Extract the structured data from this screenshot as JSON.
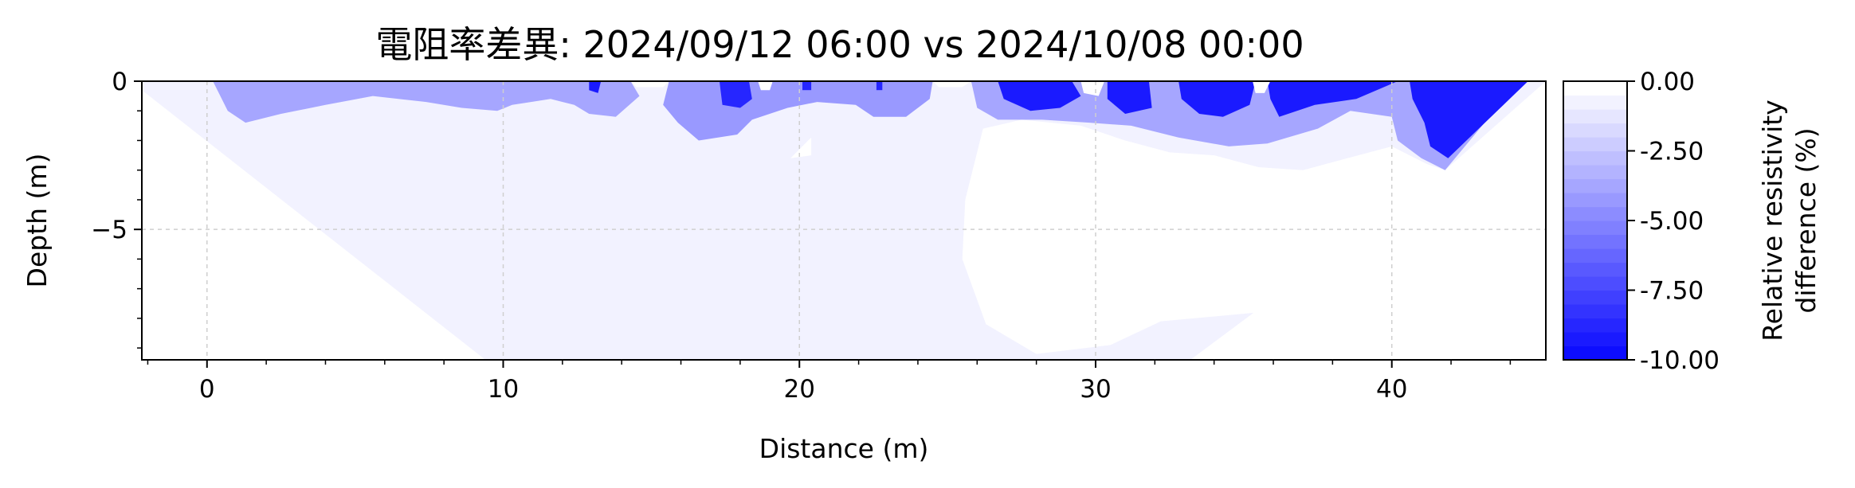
{
  "chart_data": {
    "type": "heatmap",
    "title": "電阻率差異: 2024/09/12 06:00 vs 2024/10/08 00:00",
    "xlabel": "Distance (m)",
    "ylabel": "Depth (m)",
    "xlim": [
      -2.2,
      45.2
    ],
    "ylim": [
      -9.4,
      0
    ],
    "x_ticks": [
      0,
      10,
      20,
      30,
      40
    ],
    "x_tick_labels": [
      "0",
      "10",
      "20",
      "30",
      "40"
    ],
    "y_ticks": [
      0,
      -5
    ],
    "y_tick_labels": [
      "0",
      "−5"
    ],
    "grid": true,
    "colorbar": {
      "label": "Relative resistivity difference (%)",
      "label_lines": [
        "Relative resistivity",
        "difference (%)"
      ],
      "range": [
        -10.0,
        0.0
      ],
      "ticks": [
        0.0,
        -2.5,
        -5.0,
        -7.5,
        -10.0
      ],
      "tick_labels": [
        "0.00",
        "-2.50",
        "-5.00",
        "-7.50",
        "-10.00"
      ],
      "levels": 20,
      "color_low": "#0000ff",
      "color_high": "#ffffff"
    },
    "regions": [
      {
        "name": "background",
        "value": -0.7,
        "points": [
          [
            -2.2,
            0
          ],
          [
            45.2,
            0
          ],
          [
            41.8,
            -3.0
          ],
          [
            33.2,
            -9.4
          ],
          [
            9.4,
            -9.4
          ],
          [
            -2.2,
            -0.3
          ]
        ]
      },
      {
        "name": "near-zero-center",
        "value": 0,
        "points": [
          [
            26.2,
            -1.6
          ],
          [
            27.5,
            -1.3
          ],
          [
            29.5,
            -1.5
          ],
          [
            31.0,
            -2.0
          ],
          [
            32.5,
            -2.4
          ],
          [
            34.0,
            -2.5
          ],
          [
            35.5,
            -2.9
          ],
          [
            37.0,
            -3.0
          ],
          [
            38.5,
            -2.6
          ],
          [
            40.0,
            -2.2
          ],
          [
            41.2,
            -2.8
          ],
          [
            41.8,
            -3.0
          ],
          [
            40.0,
            -5.5
          ],
          [
            35.5,
            -7.8
          ],
          [
            32.2,
            -8.1
          ],
          [
            30.5,
            -8.9
          ],
          [
            28.0,
            -9.2
          ],
          [
            26.3,
            -8.2
          ],
          [
            25.5,
            -6.0
          ],
          [
            25.6,
            -4.0
          ]
        ]
      },
      {
        "name": "near-zero-spot",
        "value": 0,
        "points": [
          [
            19.7,
            -2.6
          ],
          [
            20.4,
            -1.9
          ],
          [
            20.4,
            -2.5
          ]
        ]
      },
      {
        "name": "shallow-band",
        "value": -3.5,
        "points": [
          [
            0.2,
            0
          ],
          [
            14.3,
            0
          ],
          [
            14.6,
            -0.5
          ],
          [
            13.8,
            -1.2
          ],
          [
            12.9,
            -1.1
          ],
          [
            12.4,
            -0.8
          ],
          [
            11.6,
            -0.6
          ],
          [
            10.3,
            -0.8
          ],
          [
            9.8,
            -1.0
          ],
          [
            8.6,
            -0.9
          ],
          [
            7.4,
            -0.7
          ],
          [
            5.6,
            -0.5
          ],
          [
            4.0,
            -0.8
          ],
          [
            2.5,
            -1.1
          ],
          [
            1.3,
            -1.4
          ],
          [
            0.7,
            -1.0
          ]
        ]
      },
      {
        "name": "mid-band",
        "value": -4.0,
        "points": [
          [
            15.6,
            0
          ],
          [
            24.5,
            0
          ],
          [
            24.4,
            -0.6
          ],
          [
            23.6,
            -1.2
          ],
          [
            22.5,
            -1.2
          ],
          [
            21.9,
            -0.8
          ],
          [
            20.6,
            -0.7
          ],
          [
            19.6,
            -0.9
          ],
          [
            18.4,
            -1.3
          ],
          [
            17.9,
            -1.8
          ],
          [
            16.6,
            -2.0
          ],
          [
            15.9,
            -1.4
          ],
          [
            15.4,
            -0.8
          ]
        ]
      },
      {
        "name": "east-band",
        "value": -3.5,
        "points": [
          [
            25.8,
            0
          ],
          [
            44.3,
            0
          ],
          [
            41.8,
            -3.0
          ],
          [
            41.0,
            -2.6
          ],
          [
            40.2,
            -2.0
          ],
          [
            40.0,
            -1.2
          ],
          [
            38.6,
            -1.0
          ],
          [
            37.5,
            -1.6
          ],
          [
            35.8,
            -2.1
          ],
          [
            34.5,
            -2.2
          ],
          [
            32.8,
            -1.9
          ],
          [
            31.2,
            -1.5
          ],
          [
            29.8,
            -1.4
          ],
          [
            28.2,
            -1.3
          ],
          [
            26.7,
            -1.3
          ],
          [
            26.0,
            -0.9
          ]
        ]
      },
      {
        "name": "east-deep",
        "value": -9.0,
        "points": [
          [
            40.6,
            0
          ],
          [
            44.6,
            0
          ],
          [
            41.9,
            -2.6
          ],
          [
            41.3,
            -2.2
          ],
          [
            41.1,
            -1.4
          ],
          [
            40.7,
            -0.6
          ]
        ]
      },
      {
        "name": "block-27",
        "value": -9.0,
        "points": [
          [
            26.7,
            0
          ],
          [
            29.2,
            0
          ],
          [
            29.5,
            -0.5
          ],
          [
            28.8,
            -0.9
          ],
          [
            27.8,
            -1.0
          ],
          [
            26.9,
            -0.6
          ]
        ]
      },
      {
        "name": "block-31",
        "value": -9.0,
        "points": [
          [
            30.4,
            0
          ],
          [
            31.8,
            0
          ],
          [
            31.9,
            -0.9
          ],
          [
            31.0,
            -1.1
          ],
          [
            30.4,
            -0.6
          ]
        ]
      },
      {
        "name": "block-34",
        "value": -9.0,
        "points": [
          [
            32.8,
            0
          ],
          [
            35.4,
            0
          ],
          [
            35.2,
            -0.8
          ],
          [
            34.3,
            -1.2
          ],
          [
            33.5,
            -1.1
          ],
          [
            32.9,
            -0.6
          ]
        ]
      },
      {
        "name": "block-36",
        "value": -9.0,
        "points": [
          [
            35.8,
            0
          ],
          [
            40.2,
            0
          ],
          [
            38.8,
            -0.6
          ],
          [
            37.4,
            -0.8
          ],
          [
            36.2,
            -1.2
          ],
          [
            35.9,
            -0.6
          ]
        ]
      },
      {
        "name": "spot-13",
        "value": -9.0,
        "points": [
          [
            12.9,
            0
          ],
          [
            13.3,
            0
          ],
          [
            13.2,
            -0.4
          ],
          [
            12.9,
            -0.3
          ]
        ]
      },
      {
        "name": "spot-17",
        "value": -8.5,
        "points": [
          [
            17.3,
            0
          ],
          [
            18.3,
            0
          ],
          [
            18.4,
            -0.6
          ],
          [
            18.0,
            -0.9
          ],
          [
            17.4,
            -0.8
          ]
        ]
      },
      {
        "name": "spot-20",
        "value": -8.5,
        "points": [
          [
            20.1,
            0
          ],
          [
            20.4,
            0
          ],
          [
            20.4,
            -0.3
          ],
          [
            20.1,
            -0.3
          ]
        ]
      },
      {
        "name": "spot-22",
        "value": -8.5,
        "points": [
          [
            22.6,
            0
          ],
          [
            22.8,
            0
          ],
          [
            22.8,
            -0.3
          ],
          [
            22.6,
            -0.3
          ]
        ]
      },
      {
        "name": "gap-14",
        "value": 0,
        "points": [
          [
            14.3,
            0
          ],
          [
            15.6,
            0
          ],
          [
            15.4,
            -0.2
          ],
          [
            14.5,
            -0.2
          ]
        ]
      },
      {
        "name": "gap-18",
        "value": 0,
        "points": [
          [
            18.6,
            0
          ],
          [
            19.1,
            0
          ],
          [
            19.0,
            -0.3
          ],
          [
            18.7,
            -0.3
          ]
        ]
      },
      {
        "name": "gap-25",
        "value": 0,
        "points": [
          [
            24.5,
            0
          ],
          [
            25.8,
            0
          ],
          [
            25.5,
            -0.2
          ],
          [
            24.7,
            -0.2
          ]
        ]
      },
      {
        "name": "gap-30",
        "value": 0,
        "points": [
          [
            29.5,
            0
          ],
          [
            30.3,
            0
          ],
          [
            30.1,
            -0.5
          ],
          [
            29.6,
            -0.4
          ]
        ]
      },
      {
        "name": "gap-35",
        "value": 0,
        "points": [
          [
            35.3,
            0
          ],
          [
            35.9,
            0
          ],
          [
            35.7,
            -0.4
          ],
          [
            35.4,
            -0.4
          ]
        ]
      }
    ]
  }
}
